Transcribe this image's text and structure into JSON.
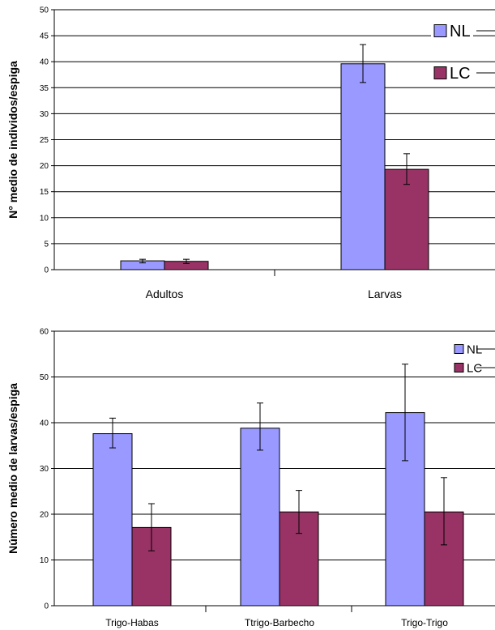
{
  "colors": {
    "NL": "#9999ff",
    "LC": "#993366",
    "grid": "#000000"
  },
  "chart_data": [
    {
      "type": "bar",
      "title": "",
      "xlabel": "",
      "ylabel": "N° medio de individos/espiga",
      "ylim": [
        0,
        50
      ],
      "yticks": [
        0,
        5,
        10,
        15,
        20,
        25,
        30,
        35,
        40,
        45,
        50
      ],
      "grid": true,
      "legend": "top-right",
      "categories": [
        "Adultos",
        "Larvas"
      ],
      "series": [
        {
          "name": "NL",
          "values": [
            1.7,
            39.6
          ],
          "err_low": [
            1.3,
            36.0
          ],
          "err_high": [
            2.0,
            43.3
          ]
        },
        {
          "name": "LC",
          "values": [
            1.6,
            19.3
          ],
          "err_low": [
            1.2,
            16.4
          ],
          "err_high": [
            2.0,
            22.3
          ]
        }
      ]
    },
    {
      "type": "bar",
      "title": "",
      "xlabel": "",
      "ylabel": "Número medio de larvas/espiga",
      "ylim": [
        0,
        60
      ],
      "yticks": [
        0,
        10,
        20,
        30,
        40,
        50,
        60
      ],
      "grid": true,
      "legend": "top-right",
      "categories": [
        "Trigo-Habas",
        "Ttrigo-Barbecho",
        "Trigo-Trigo"
      ],
      "series": [
        {
          "name": "NL",
          "values": [
            37.6,
            38.8,
            42.2
          ],
          "err_low": [
            34.5,
            34.0,
            31.7
          ],
          "err_high": [
            41.0,
            44.3,
            52.8
          ]
        },
        {
          "name": "LC",
          "values": [
            17.1,
            20.5,
            20.5
          ],
          "err_low": [
            12.0,
            15.8,
            13.3
          ],
          "err_high": [
            22.3,
            25.2,
            28.0
          ]
        }
      ]
    }
  ]
}
